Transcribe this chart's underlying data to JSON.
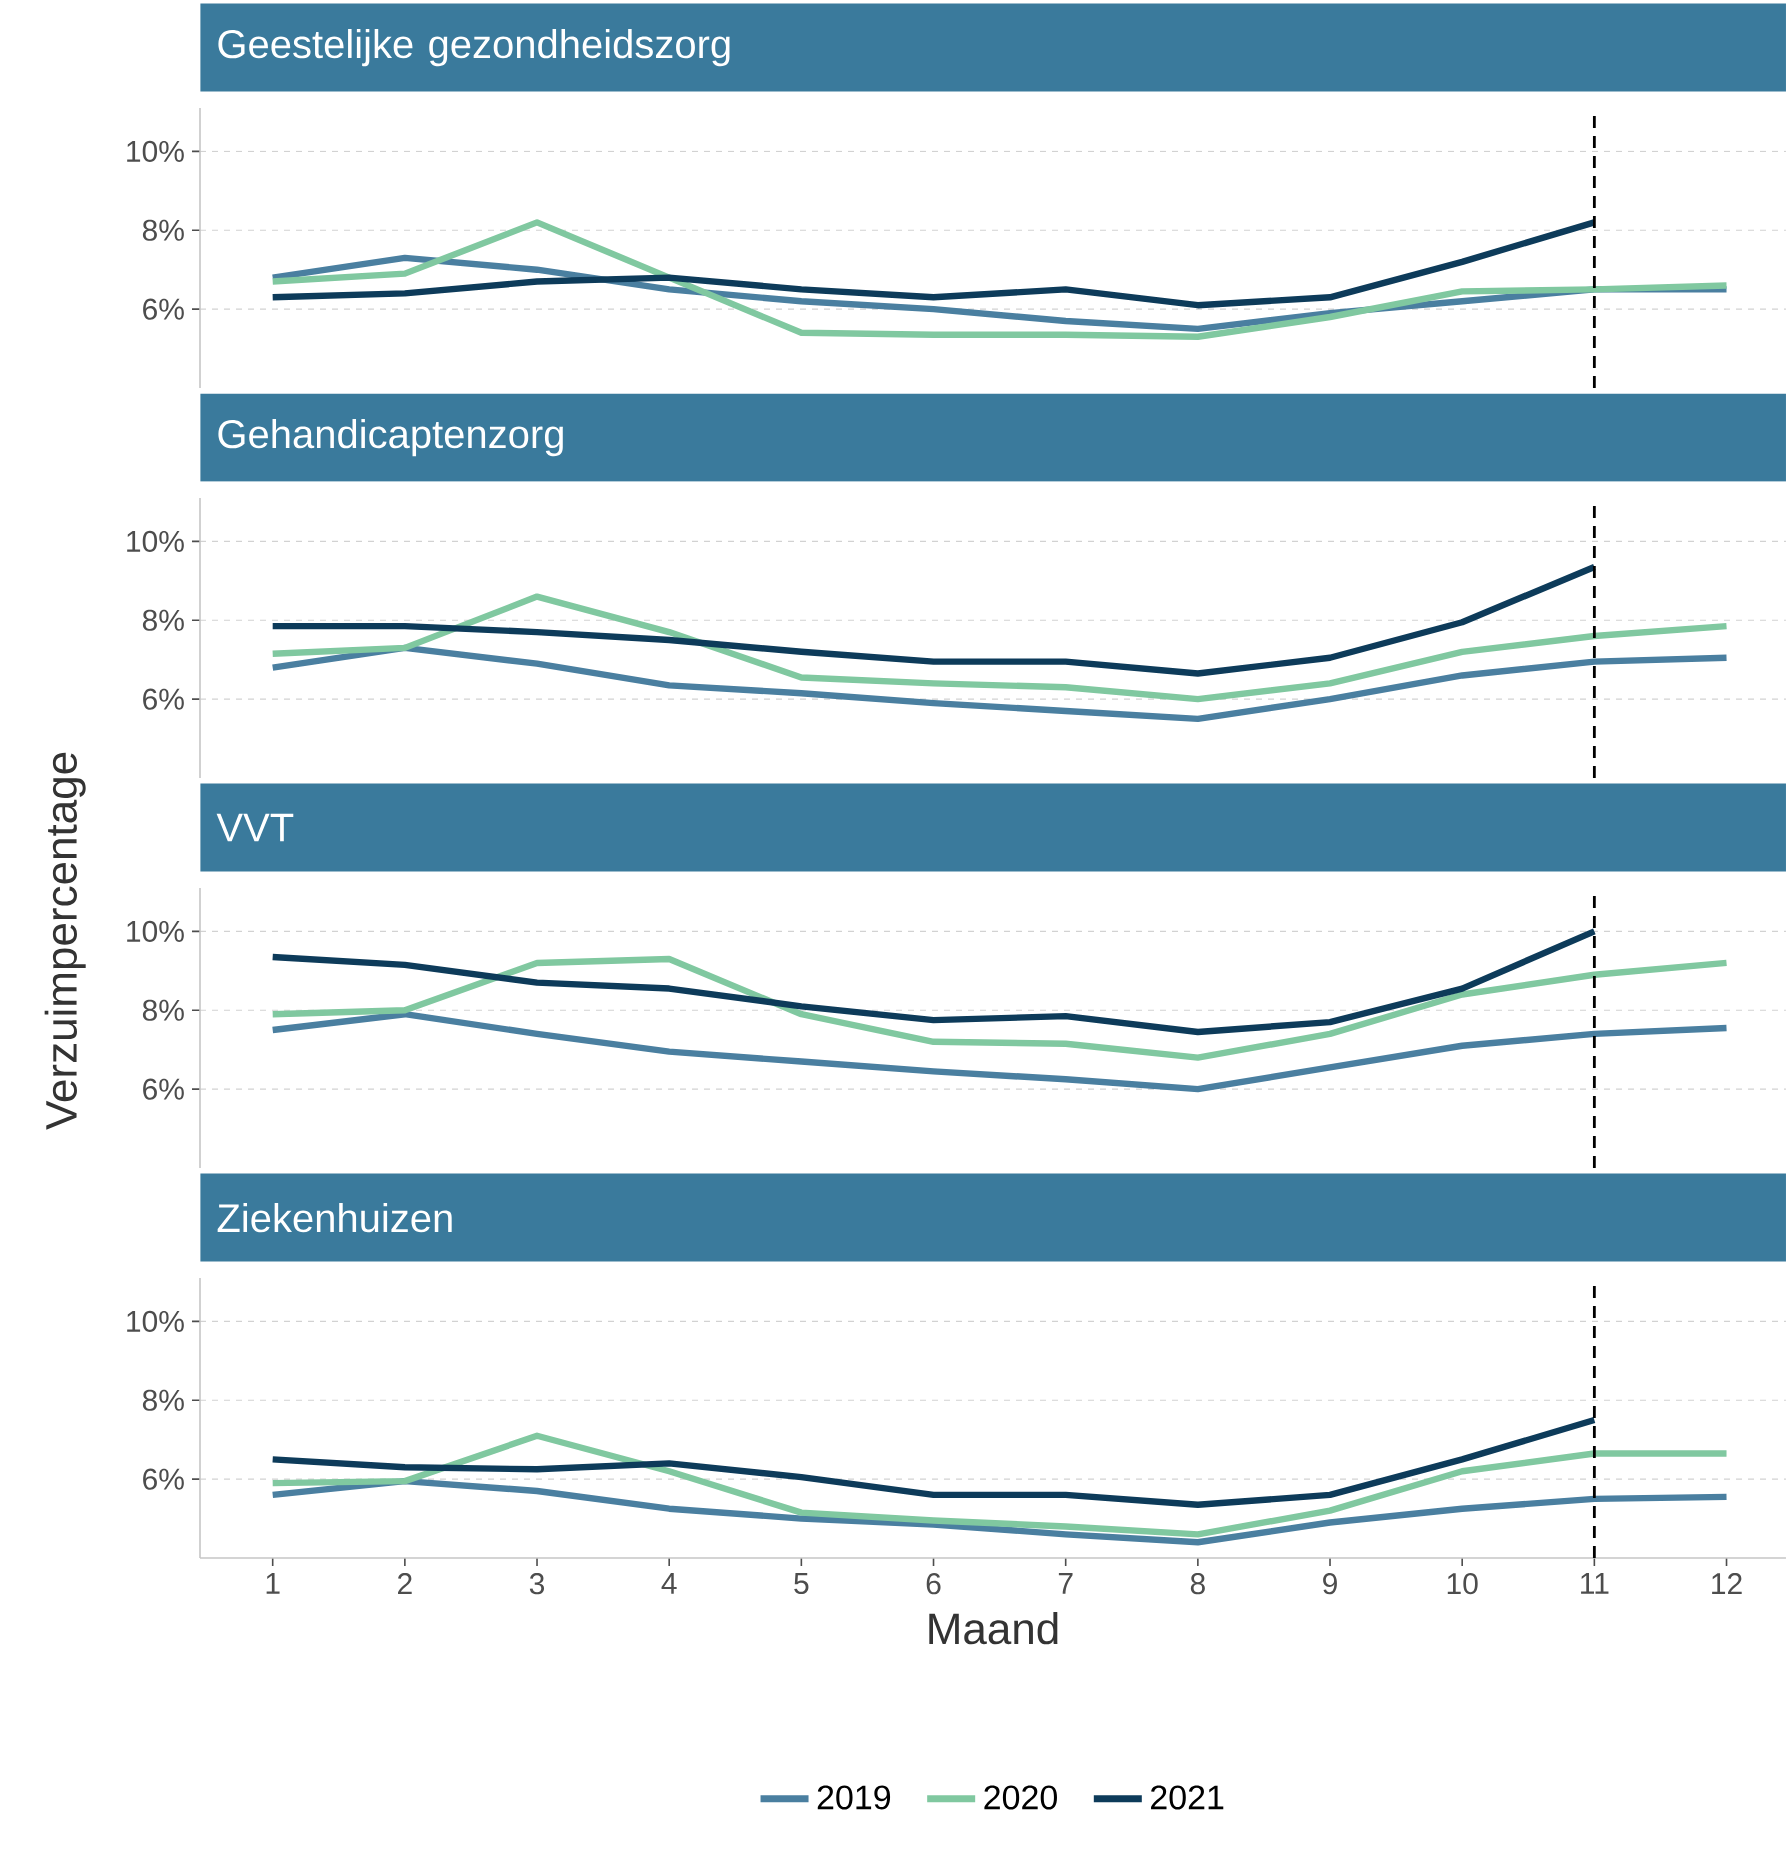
{
  "chart_data": [
    {
      "type": "line",
      "title": "Geestelijke gezondheidszorg",
      "x": [
        1,
        2,
        3,
        4,
        5,
        6,
        7,
        8,
        9,
        10,
        11,
        12
      ],
      "xlim": [
        0.45,
        12.45
      ],
      "ylim": [
        4,
        11.1
      ],
      "yticks": [
        {
          "value": 6,
          "label": "6%"
        },
        {
          "value": 8,
          "label": "8%"
        },
        {
          "value": 10,
          "label": "10%"
        }
      ],
      "grid": "y",
      "tick_labels": "y",
      "ref_lines": [
        {
          "axis": "x",
          "value": 11,
          "color": "#000000",
          "line_style": "dashed"
        }
      ],
      "series": [
        {
          "color": "#4a7fa0",
          "values": [
            6.8,
            7.3,
            7.0,
            6.5,
            6.2,
            6.0,
            5.7,
            5.5,
            5.9,
            6.2,
            6.5,
            6.5
          ]
        },
        {
          "color": "#80c8a0",
          "values": [
            6.7,
            6.9,
            8.2,
            6.8,
            5.4,
            5.35,
            5.35,
            5.3,
            5.8,
            6.45,
            6.5,
            6.6
          ]
        },
        {
          "color": "#0d3b5a",
          "values": [
            6.3,
            6.4,
            6.7,
            6.8,
            6.5,
            6.3,
            6.5,
            6.1,
            6.3,
            7.2,
            8.2,
            null
          ]
        }
      ]
    },
    {
      "type": "line",
      "title": "Gehandicaptenzorg",
      "ylabel": "Verzuimpercentage",
      "x": [
        1,
        2,
        3,
        4,
        5,
        6,
        7,
        8,
        9,
        10,
        11,
        12
      ],
      "xlim": [
        0.45,
        12.45
      ],
      "ylim": [
        4,
        11.1
      ],
      "yticks": [
        {
          "value": 6,
          "label": "6%"
        },
        {
          "value": 8,
          "label": "8%"
        },
        {
          "value": 10,
          "label": "10%"
        }
      ],
      "grid": "y",
      "tick_labels": "y",
      "ref_lines": [
        {
          "axis": "x",
          "value": 11,
          "color": "#000000",
          "line_style": "dashed"
        }
      ],
      "series": [
        {
          "color": "#4a7fa0",
          "values": [
            6.8,
            7.3,
            6.9,
            6.35,
            6.15,
            5.9,
            5.7,
            5.5,
            6.0,
            6.6,
            6.95,
            7.05
          ]
        },
        {
          "color": "#80c8a0",
          "values": [
            7.15,
            7.3,
            8.6,
            7.7,
            6.55,
            6.4,
            6.3,
            6.0,
            6.4,
            7.2,
            7.6,
            7.85
          ]
        },
        {
          "color": "#0d3b5a",
          "values": [
            7.85,
            7.85,
            7.7,
            7.5,
            7.2,
            6.95,
            6.95,
            6.65,
            7.05,
            7.95,
            9.35,
            null
          ]
        }
      ]
    },
    {
      "type": "line",
      "title": "VVT",
      "x": [
        1,
        2,
        3,
        4,
        5,
        6,
        7,
        8,
        9,
        10,
        11,
        12
      ],
      "xlim": [
        0.45,
        12.45
      ],
      "ylim": [
        4,
        11.1
      ],
      "yticks": [
        {
          "value": 6,
          "label": "6%"
        },
        {
          "value": 8,
          "label": "8%"
        },
        {
          "value": 10,
          "label": "10%"
        }
      ],
      "grid": "y",
      "tick_labels": "y",
      "ref_lines": [
        {
          "axis": "x",
          "value": 11,
          "color": "#000000",
          "line_style": "dashed"
        }
      ],
      "series": [
        {
          "color": "#4a7fa0",
          "values": [
            7.5,
            7.9,
            7.4,
            6.95,
            6.7,
            6.45,
            6.25,
            6.0,
            6.55,
            7.1,
            7.4,
            7.55
          ]
        },
        {
          "color": "#80c8a0",
          "values": [
            7.9,
            8.0,
            9.2,
            9.3,
            7.9,
            7.2,
            7.15,
            6.8,
            7.4,
            8.4,
            8.9,
            9.2
          ]
        },
        {
          "color": "#0d3b5a",
          "values": [
            9.35,
            9.15,
            8.7,
            8.55,
            8.1,
            7.75,
            7.85,
            7.45,
            7.7,
            8.55,
            10.0,
            null
          ]
        }
      ]
    },
    {
      "type": "line",
      "title": "Ziekenhuizen",
      "xlabel": "Maand",
      "x": [
        1,
        2,
        3,
        4,
        5,
        6,
        7,
        8,
        9,
        10,
        11,
        12
      ],
      "xlim": [
        0.45,
        12.45
      ],
      "xticks": [
        1,
        2,
        3,
        4,
        5,
        6,
        7,
        8,
        9,
        10,
        11,
        12
      ],
      "ylim": [
        4,
        11.1
      ],
      "yticks": [
        {
          "value": 6,
          "label": "6%"
        },
        {
          "value": 8,
          "label": "8%"
        },
        {
          "value": 10,
          "label": "10%"
        }
      ],
      "grid": "y",
      "legend": "bottom",
      "ref_lines": [
        {
          "axis": "x",
          "value": 11,
          "color": "#000000",
          "line_style": "dashed"
        }
      ],
      "series": [
        {
          "name": "2019",
          "color": "#4a7fa0",
          "values": [
            5.6,
            5.95,
            5.7,
            5.25,
            5.0,
            4.85,
            4.6,
            4.4,
            4.9,
            5.25,
            5.5,
            5.55
          ]
        },
        {
          "name": "2020",
          "color": "#80c8a0",
          "values": [
            5.9,
            5.95,
            7.1,
            6.2,
            5.15,
            4.95,
            4.8,
            4.6,
            5.2,
            6.2,
            6.65,
            6.65
          ]
        },
        {
          "name": "2021",
          "color": "#0d3b5a",
          "values": [
            6.5,
            6.3,
            6.25,
            6.4,
            6.05,
            5.6,
            5.6,
            5.35,
            5.6,
            6.5,
            7.5,
            null
          ]
        }
      ]
    }
  ]
}
